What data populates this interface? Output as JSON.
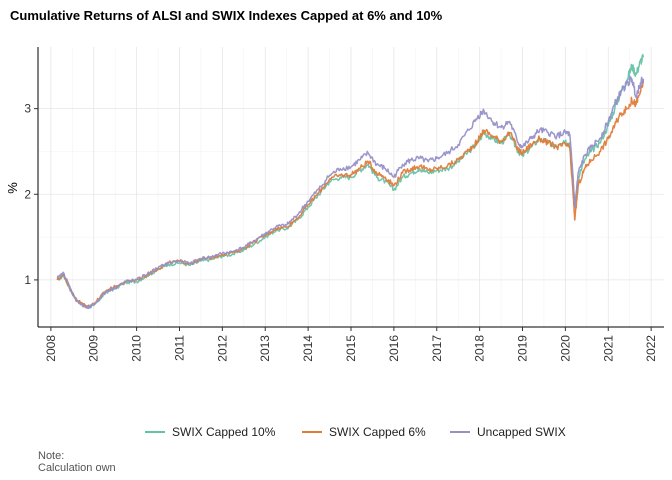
{
  "chart_data": {
    "type": "line",
    "title": "Cumulative Returns of ALSI and SWIX Indexes Capped at 6% and 10%",
    "xlabel": "",
    "ylabel": "%",
    "xlim": [
      2007.7,
      2022.3
    ],
    "ylim": [
      0.45,
      3.72
    ],
    "x_ticks": [
      "2008",
      "2009",
      "2010",
      "2011",
      "2012",
      "2013",
      "2014",
      "2015",
      "2016",
      "2017",
      "2018",
      "2019",
      "2020",
      "2021",
      "2022"
    ],
    "y_ticks": [
      "1",
      "2",
      "3"
    ],
    "grid": true,
    "legend_position": "bottom",
    "series": [
      {
        "name": "SWIX Capped 10%",
        "color": "#66C2A5",
        "x": [
          2008.15,
          2008.3,
          2008.42,
          2008.55,
          2008.7,
          2008.85,
          2009.0,
          2009.15,
          2009.3,
          2009.5,
          2009.75,
          2010.0,
          2010.25,
          2010.5,
          2010.75,
          2011.0,
          2011.25,
          2011.5,
          2011.75,
          2012.0,
          2012.25,
          2012.5,
          2012.75,
          2013.0,
          2013.25,
          2013.5,
          2013.75,
          2014.0,
          2014.25,
          2014.5,
          2014.75,
          2015.0,
          2015.2,
          2015.4,
          2015.6,
          2015.8,
          2016.0,
          2016.2,
          2016.4,
          2016.6,
          2016.8,
          2017.0,
          2017.25,
          2017.5,
          2017.75,
          2017.95,
          2018.1,
          2018.3,
          2018.5,
          2018.7,
          2018.9,
          2019.0,
          2019.2,
          2019.4,
          2019.6,
          2019.8,
          2020.0,
          2020.1,
          2020.18,
          2020.22,
          2020.3,
          2020.45,
          2020.6,
          2020.8,
          2021.0,
          2021.15,
          2021.3,
          2021.45,
          2021.55,
          2021.65,
          2021.75,
          2021.82
        ],
        "values": [
          1.0,
          1.05,
          0.92,
          0.8,
          0.72,
          0.68,
          0.7,
          0.78,
          0.86,
          0.9,
          0.97,
          0.98,
          1.05,
          1.12,
          1.18,
          1.2,
          1.17,
          1.22,
          1.24,
          1.28,
          1.3,
          1.35,
          1.42,
          1.5,
          1.58,
          1.6,
          1.7,
          1.85,
          2.0,
          2.15,
          2.2,
          2.2,
          2.28,
          2.35,
          2.2,
          2.15,
          2.05,
          2.2,
          2.25,
          2.3,
          2.25,
          2.28,
          2.3,
          2.38,
          2.5,
          2.6,
          2.72,
          2.65,
          2.6,
          2.7,
          2.5,
          2.45,
          2.55,
          2.65,
          2.6,
          2.55,
          2.6,
          2.6,
          2.1,
          1.85,
          2.2,
          2.4,
          2.5,
          2.6,
          2.8,
          3.0,
          3.2,
          3.35,
          3.5,
          3.4,
          3.55,
          3.6
        ]
      },
      {
        "name": "SWIX Capped 6%",
        "color": "#E07B39",
        "x": [
          2008.15,
          2008.3,
          2008.42,
          2008.55,
          2008.7,
          2008.85,
          2009.0,
          2009.15,
          2009.3,
          2009.5,
          2009.75,
          2010.0,
          2010.25,
          2010.5,
          2010.75,
          2011.0,
          2011.25,
          2011.5,
          2011.75,
          2012.0,
          2012.25,
          2012.5,
          2012.75,
          2013.0,
          2013.25,
          2013.5,
          2013.75,
          2014.0,
          2014.25,
          2014.5,
          2014.75,
          2015.0,
          2015.2,
          2015.4,
          2015.6,
          2015.8,
          2016.0,
          2016.2,
          2016.4,
          2016.6,
          2016.8,
          2017.0,
          2017.25,
          2017.5,
          2017.75,
          2017.95,
          2018.1,
          2018.3,
          2018.5,
          2018.7,
          2018.9,
          2019.0,
          2019.2,
          2019.4,
          2019.6,
          2019.8,
          2020.0,
          2020.1,
          2020.18,
          2020.22,
          2020.3,
          2020.45,
          2020.6,
          2020.8,
          2021.0,
          2021.15,
          2021.3,
          2021.45,
          2021.55,
          2021.65,
          2021.75,
          2021.82
        ],
        "values": [
          1.0,
          1.06,
          0.93,
          0.8,
          0.73,
          0.69,
          0.72,
          0.8,
          0.88,
          0.92,
          0.98,
          1.0,
          1.06,
          1.13,
          1.2,
          1.22,
          1.19,
          1.24,
          1.26,
          1.3,
          1.32,
          1.37,
          1.45,
          1.52,
          1.6,
          1.62,
          1.72,
          1.88,
          2.02,
          2.18,
          2.22,
          2.23,
          2.3,
          2.38,
          2.25,
          2.2,
          2.1,
          2.25,
          2.3,
          2.33,
          2.28,
          2.3,
          2.33,
          2.4,
          2.52,
          2.62,
          2.75,
          2.68,
          2.62,
          2.72,
          2.52,
          2.48,
          2.58,
          2.65,
          2.6,
          2.55,
          2.58,
          2.55,
          2.0,
          1.7,
          2.1,
          2.3,
          2.4,
          2.5,
          2.65,
          2.8,
          2.95,
          3.0,
          3.1,
          3.05,
          3.2,
          3.3
        ]
      },
      {
        "name": "Uncapped SWIX",
        "color": "#9590C8",
        "x": [
          2008.15,
          2008.3,
          2008.42,
          2008.55,
          2008.7,
          2008.85,
          2009.0,
          2009.15,
          2009.3,
          2009.5,
          2009.75,
          2010.0,
          2010.25,
          2010.5,
          2010.75,
          2011.0,
          2011.25,
          2011.5,
          2011.75,
          2012.0,
          2012.25,
          2012.5,
          2012.75,
          2013.0,
          2013.25,
          2013.5,
          2013.75,
          2014.0,
          2014.25,
          2014.5,
          2014.75,
          2015.0,
          2015.2,
          2015.4,
          2015.6,
          2015.8,
          2016.0,
          2016.2,
          2016.4,
          2016.6,
          2016.8,
          2017.0,
          2017.25,
          2017.5,
          2017.75,
          2017.95,
          2018.1,
          2018.3,
          2018.5,
          2018.7,
          2018.9,
          2019.0,
          2019.2,
          2019.4,
          2019.6,
          2019.8,
          2020.0,
          2020.1,
          2020.18,
          2020.22,
          2020.3,
          2020.45,
          2020.6,
          2020.8,
          2021.0,
          2021.15,
          2021.3,
          2021.45,
          2021.55,
          2021.65,
          2021.75,
          2021.82
        ],
        "values": [
          1.02,
          1.08,
          0.94,
          0.79,
          0.71,
          0.67,
          0.71,
          0.79,
          0.87,
          0.91,
          0.98,
          1.0,
          1.07,
          1.14,
          1.2,
          1.22,
          1.19,
          1.25,
          1.27,
          1.31,
          1.33,
          1.38,
          1.46,
          1.54,
          1.62,
          1.64,
          1.76,
          1.92,
          2.06,
          2.22,
          2.3,
          2.32,
          2.4,
          2.48,
          2.35,
          2.3,
          2.2,
          2.35,
          2.4,
          2.42,
          2.38,
          2.42,
          2.48,
          2.58,
          2.75,
          2.9,
          2.98,
          2.85,
          2.78,
          2.85,
          2.6,
          2.55,
          2.65,
          2.75,
          2.72,
          2.68,
          2.72,
          2.7,
          2.2,
          1.85,
          2.25,
          2.45,
          2.55,
          2.65,
          2.85,
          3.05,
          3.2,
          3.3,
          3.35,
          3.15,
          3.3,
          3.35
        ]
      }
    ],
    "caption": [
      "Note:",
      "Calculation own"
    ]
  }
}
